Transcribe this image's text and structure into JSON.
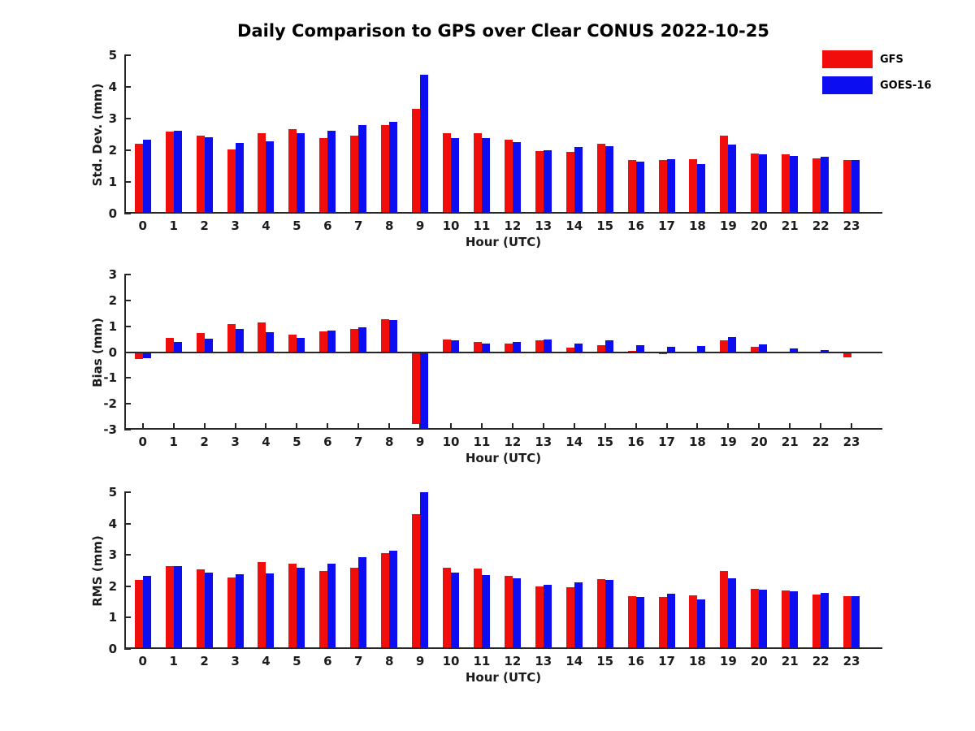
{
  "title": "Daily Comparison to GPS over Clear CONUS 2022-10-25",
  "legend": {
    "items": [
      {
        "label": "GFS",
        "color": "#f20d0d"
      },
      {
        "label": "GOES-16",
        "color": "#0d0df2"
      }
    ]
  },
  "axis_color": "#262626",
  "chart_data": [
    {
      "type": "bar",
      "panel": "std-dev",
      "ylabel": "Std. Dev. (mm)",
      "xlabel": "Hour (UTC)",
      "ylim": [
        0,
        5
      ],
      "yticks": [
        0,
        1,
        2,
        3,
        4,
        5
      ],
      "grid": false,
      "legend_position": "top-right-outside",
      "categories": [
        "0",
        "1",
        "2",
        "3",
        "4",
        "5",
        "6",
        "7",
        "8",
        "9",
        "10",
        "11",
        "12",
        "13",
        "14",
        "15",
        "16",
        "17",
        "18",
        "19",
        "20",
        "21",
        "22",
        "23"
      ],
      "series": [
        {
          "name": "GFS",
          "color": "#f20d0d",
          "values": [
            2.2,
            2.6,
            2.45,
            2.03,
            2.55,
            2.67,
            2.38,
            2.46,
            2.8,
            3.32,
            2.54,
            2.53,
            2.33,
            1.97,
            1.96,
            2.21,
            1.7,
            1.68,
            1.73,
            2.47,
            1.91,
            1.86,
            1.74,
            1.68
          ]
        },
        {
          "name": "GOES-16",
          "color": "#0d0df2",
          "values": [
            2.33,
            2.62,
            2.4,
            2.23,
            2.29,
            2.54,
            2.61,
            2.8,
            2.89,
            4.38,
            2.38,
            2.39,
            2.25,
            2.0,
            2.1,
            2.14,
            1.63,
            1.73,
            1.57,
            2.19,
            1.86,
            1.83,
            1.79,
            1.68
          ]
        }
      ]
    },
    {
      "type": "bar",
      "panel": "bias",
      "ylabel": "Bias (mm)",
      "xlabel": "Hour (UTC)",
      "ylim": [
        -3,
        3
      ],
      "yticks": [
        3,
        2,
        1,
        0,
        -1,
        -2,
        -3
      ],
      "grid": false,
      "categories": [
        "0",
        "1",
        "2",
        "3",
        "4",
        "5",
        "6",
        "7",
        "8",
        "9",
        "10",
        "11",
        "12",
        "13",
        "14",
        "15",
        "16",
        "17",
        "18",
        "19",
        "20",
        "21",
        "22",
        "23"
      ],
      "series": [
        {
          "name": "GFS",
          "color": "#f20d0d",
          "values": [
            -0.28,
            0.55,
            0.75,
            1.08,
            1.14,
            0.69,
            0.8,
            0.9,
            1.27,
            -2.78,
            0.5,
            0.4,
            0.33,
            0.44,
            0.16,
            0.26,
            0.05,
            -0.08,
            0.02,
            0.44,
            0.2,
            0.02,
            -0.06,
            -0.2
          ]
        },
        {
          "name": "GOES-16",
          "color": "#0d0df2",
          "values": [
            -0.23,
            0.4,
            0.52,
            0.9,
            0.78,
            0.55,
            0.84,
            0.95,
            1.23,
            -3.0,
            0.47,
            0.33,
            0.38,
            0.5,
            0.34,
            0.45,
            0.28,
            0.19,
            0.23,
            0.58,
            0.31,
            0.13,
            0.08,
            0.01
          ]
        }
      ]
    },
    {
      "type": "bar",
      "panel": "rms",
      "ylabel": "RMS (mm)",
      "xlabel": "Hour (UTC)",
      "ylim": [
        0,
        5
      ],
      "yticks": [
        0,
        1,
        2,
        3,
        4,
        5
      ],
      "grid": false,
      "categories": [
        "0",
        "1",
        "2",
        "3",
        "4",
        "5",
        "6",
        "7",
        "8",
        "9",
        "10",
        "11",
        "12",
        "13",
        "14",
        "15",
        "16",
        "17",
        "18",
        "19",
        "20",
        "21",
        "22",
        "23"
      ],
      "series": [
        {
          "name": "GFS",
          "color": "#f20d0d",
          "values": [
            2.2,
            2.65,
            2.53,
            2.28,
            2.77,
            2.72,
            2.5,
            2.6,
            3.05,
            4.3,
            2.6,
            2.56,
            2.33,
            1.99,
            1.96,
            2.23,
            1.68,
            1.66,
            1.71,
            2.49,
            1.92,
            1.87,
            1.74,
            1.68
          ]
        },
        {
          "name": "GOES-16",
          "color": "#0d0df2",
          "values": [
            2.33,
            2.65,
            2.44,
            2.38,
            2.42,
            2.6,
            2.72,
            2.93,
            3.13,
            5.0,
            2.43,
            2.37,
            2.26,
            2.05,
            2.12,
            2.19,
            1.66,
            1.76,
            1.58,
            2.25,
            1.89,
            1.84,
            1.79,
            1.68
          ]
        }
      ]
    }
  ]
}
